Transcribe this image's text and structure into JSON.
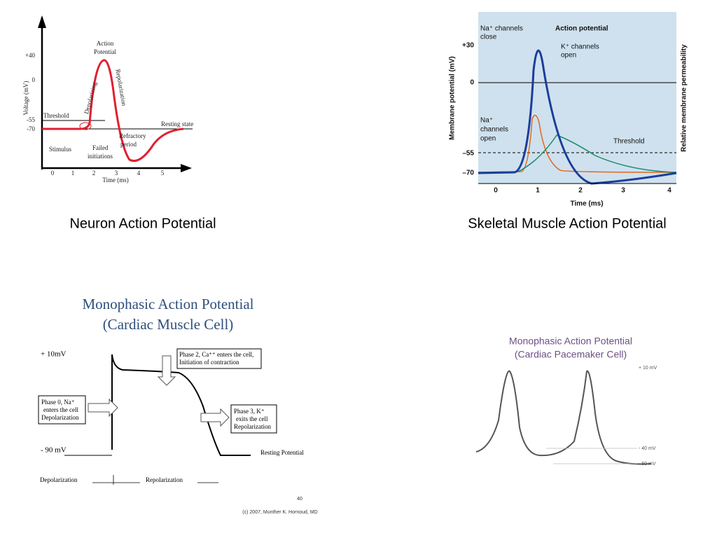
{
  "neuron": {
    "caption": "Neuron Action Potential",
    "y_axis_label": "Voltage (mV)",
    "x_axis_label": "Time (ms)",
    "y_ticks": [
      "+40",
      "0",
      "-55",
      "-70"
    ],
    "x_ticks": [
      "0",
      "1",
      "2",
      "3",
      "4",
      "5"
    ],
    "action_potential": [
      "Action",
      "Potential"
    ],
    "depolarizing": "Depolarizing",
    "repolarization": "Repolarization",
    "threshold": "Threshold",
    "resting_state": "Resting state",
    "stimulus": "Stimulus",
    "failed_initiations": [
      "Failed",
      "initiations"
    ],
    "refractory_period": [
      "Refractory",
      "period"
    ]
  },
  "skeletal": {
    "caption": "Skeletal Muscle Action Potential",
    "y_axis_label": "Membrane potential (mV)",
    "y2_axis_label": "Relative membrane permeability",
    "x_axis_label": "Time (ms)",
    "y_ticks": [
      "+30",
      "0",
      "–55",
      "–70"
    ],
    "x_ticks": [
      "0",
      "1",
      "2",
      "3",
      "4"
    ],
    "na_close": [
      "Na⁺ channels",
      "close"
    ],
    "action_potential": "Action potential",
    "k_open": [
      "K⁺ channels",
      "open"
    ],
    "na_open": [
      "Na⁺",
      "channels",
      "open"
    ],
    "threshold": "Threshold"
  },
  "cardiac": {
    "title": [
      "Monophasic Action Potential",
      "(Cardiac Muscle Cell)"
    ],
    "top_voltage": "+ 10mV",
    "bottom_voltage": "- 90 mV",
    "phase2": [
      "Phase 2, Ca⁺⁺ enters the cell,",
      "Initiation of contraction"
    ],
    "phase0": [
      "Phase 0, Na⁺",
      "enters the cell",
      "Depolarization"
    ],
    "phase3": [
      "Phase 3, K⁺",
      "exits the cell",
      "Repolarization"
    ],
    "resting": "Resting Potential",
    "depolarization": "Depolarization",
    "repolarization": "Repolarization"
  },
  "pacemaker": {
    "title": [
      "Monophasic Action Potential",
      "(Cardiac Pacemaker Cell)"
    ],
    "top_voltage": "+ 10 mV",
    "mid_voltage": "- 40 mV",
    "bottom_voltage": "- 60 mV"
  },
  "footer": {
    "page_number": "40",
    "copyright": "(c) 2007, Munther K. Hornoud, MD"
  }
}
